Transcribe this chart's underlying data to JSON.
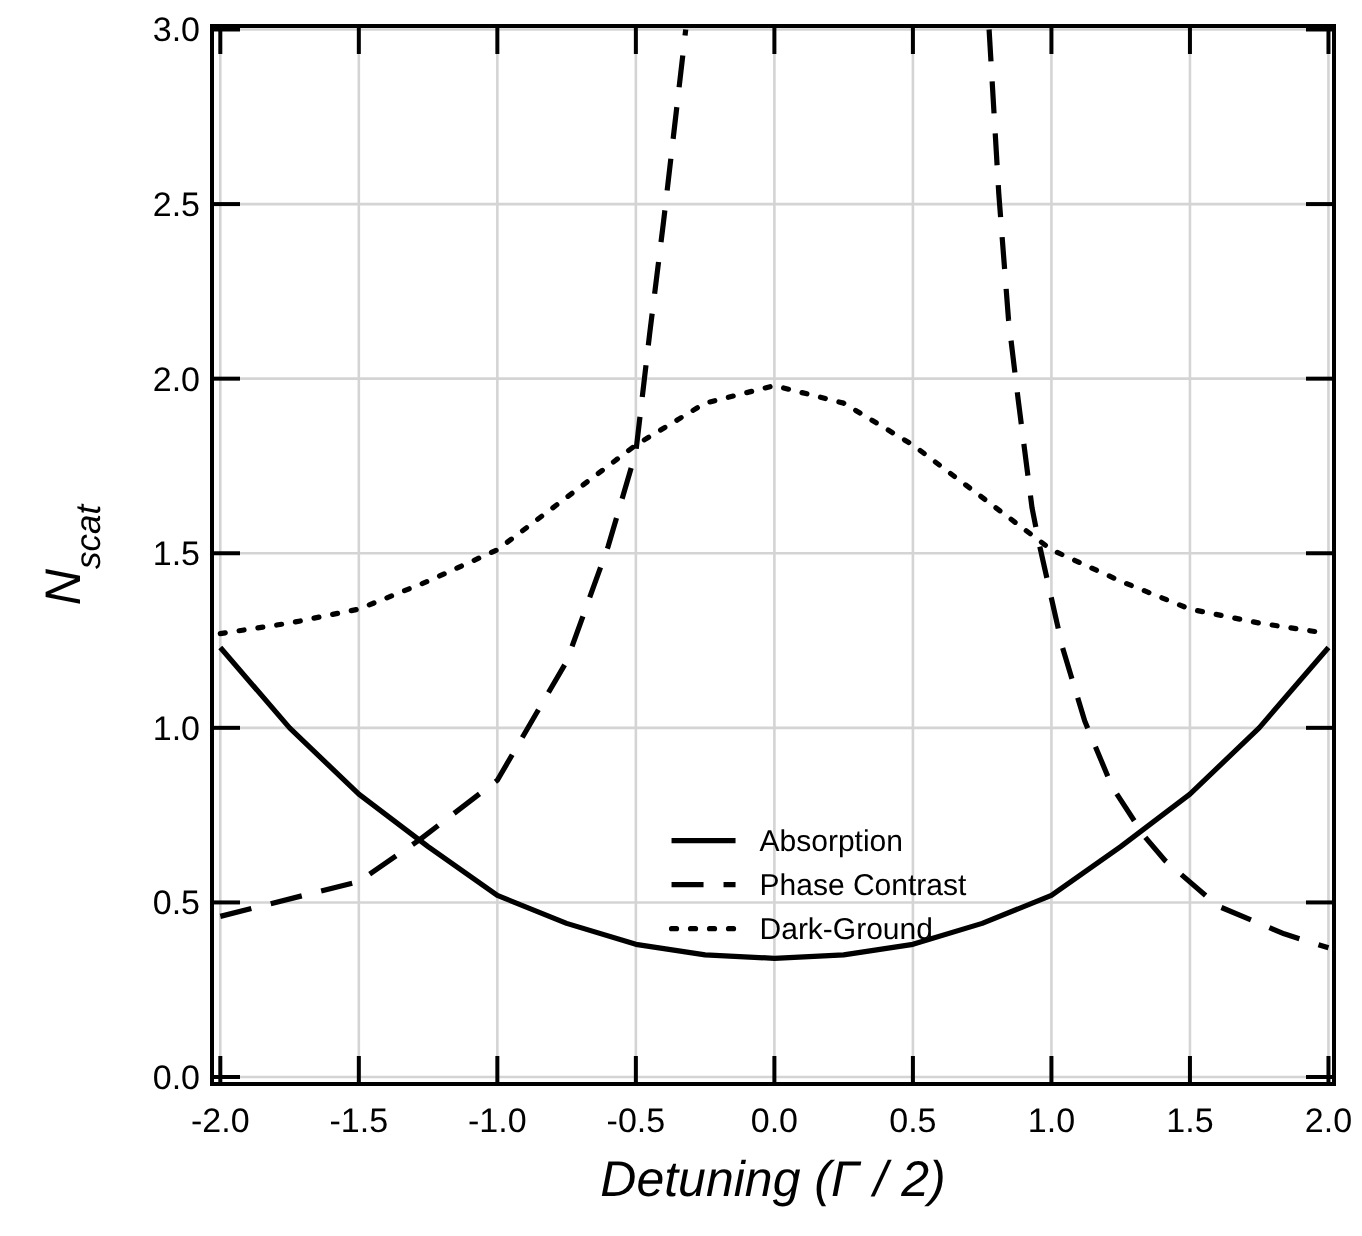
{
  "chart_data": {
    "type": "line",
    "xlabel": "Detuning (Γ / 2)",
    "ylabel": "N$_{scat}$",
    "xlim": [
      -2.03,
      2.02
    ],
    "ylim": [
      -0.02,
      3.01
    ],
    "xticks": [
      {
        "value": -2,
        "label": "-2.0"
      },
      {
        "value": -1.5,
        "label": "-1.5"
      },
      {
        "value": -1,
        "label": "-1.0"
      },
      {
        "value": -0.5,
        "label": "-0.5"
      },
      {
        "value": 0,
        "label": "0.0"
      },
      {
        "value": 0.5,
        "label": "0.5"
      },
      {
        "value": 1,
        "label": "1.0"
      },
      {
        "value": 1.5,
        "label": "1.5"
      },
      {
        "value": 2,
        "label": "2.0"
      }
    ],
    "yticks": [
      {
        "value": 0,
        "label": "0.0"
      },
      {
        "value": 0.5,
        "label": "0.5"
      },
      {
        "value": 1,
        "label": "1.0"
      },
      {
        "value": 1.5,
        "label": "1.5"
      },
      {
        "value": 2,
        "label": "2.0"
      },
      {
        "value": 2.5,
        "label": "2.5"
      },
      {
        "value": 3,
        "label": "3.0"
      }
    ],
    "grid": true,
    "legend": "bottom",
    "marker": "none",
    "series": [
      {
        "name": "Absorption",
        "color": "#000000",
        "line_style": "solid",
        "x": [
          -2,
          -1.75,
          -1.5,
          -1.25,
          -1,
          -0.75,
          -0.5,
          -0.25,
          0,
          0.25,
          0.5,
          0.75,
          1,
          1.25,
          1.5,
          1.75,
          2
        ],
        "values": [
          1.23,
          1.0,
          0.81,
          0.66,
          0.52,
          0.44,
          0.38,
          0.35,
          0.34,
          0.35,
          0.38,
          0.44,
          0.52,
          0.66,
          0.81,
          1.0,
          1.23
        ]
      },
      {
        "name": "Phase Contrast",
        "color": "#000000",
        "line_style": "dashed",
        "x": [
          -2,
          -1.5,
          -1.28,
          -1,
          -0.75,
          -0.6,
          -0.5,
          -0.45,
          -0.4,
          -0.33,
          -0.32
        ],
        "values": [
          0.46,
          0.56,
          0.68,
          0.85,
          1.19,
          1.52,
          1.79,
          2.13,
          2.45,
          2.93,
          3.0
        ]
      },
      {
        "color": "#000000",
        "line_style": "dashed",
        "x": [
          0.775,
          0.81,
          0.845,
          0.88,
          0.93,
          0.955,
          1.04,
          1.12,
          1.22,
          1.335,
          1.41,
          1.6,
          1.84,
          2
        ],
        "values": [
          3.0,
          2.53,
          2.17,
          1.94,
          1.63,
          1.53,
          1.23,
          1.02,
          0.83,
          0.69,
          0.62,
          0.49,
          0.41,
          0.37
        ]
      },
      {
        "name": "Dark-Ground",
        "color": "#000000",
        "line_style": "dotted",
        "x": [
          -2,
          -1.75,
          -1.5,
          -1.25,
          -1,
          -0.75,
          -0.5,
          -0.25,
          0,
          0.25,
          0.5,
          0.75,
          1,
          1.25,
          1.5,
          1.75,
          2
        ],
        "values": [
          1.27,
          1.3,
          1.34,
          1.42,
          1.51,
          1.66,
          1.81,
          1.93,
          1.98,
          1.93,
          1.81,
          1.66,
          1.51,
          1.42,
          1.34,
          1.3,
          1.27
        ]
      }
    ]
  }
}
